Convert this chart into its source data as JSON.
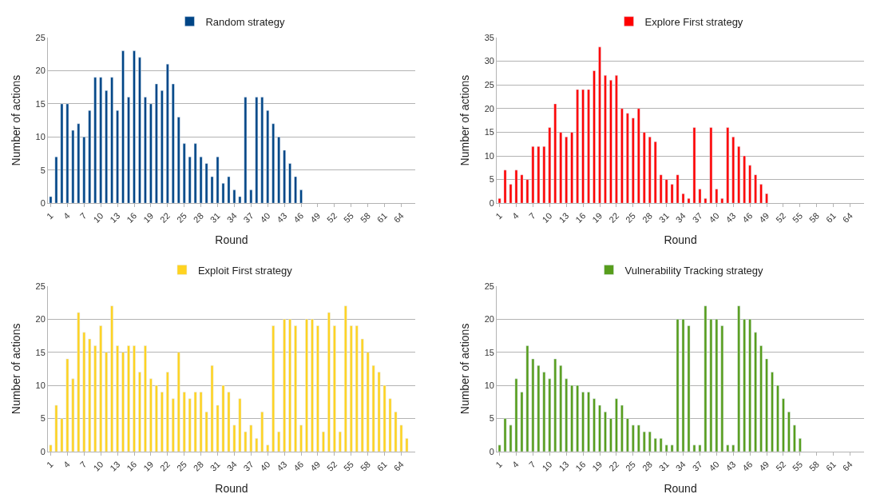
{
  "chart_data": [
    {
      "type": "bar",
      "xlabel": "Round",
      "ylabel": "Number of actions",
      "legend": "top",
      "grid": "y",
      "ylim": [
        0,
        25
      ],
      "yticks": [
        0,
        5,
        10,
        15,
        20,
        25
      ],
      "categories": [
        "1",
        null,
        null,
        "4",
        null,
        null,
        "7",
        null,
        null,
        "10",
        null,
        null,
        "13",
        null,
        null,
        "16",
        null,
        null,
        "19",
        null,
        null,
        "22",
        null,
        null,
        "25",
        null,
        null,
        "28",
        null,
        null,
        "31",
        null,
        null,
        "34",
        null,
        null,
        "37",
        null,
        null,
        "40",
        null,
        null,
        "43",
        null,
        null,
        "46",
        null,
        null,
        "49",
        null,
        null,
        "52",
        null,
        null,
        "55",
        null,
        null,
        "58",
        null,
        null,
        "61",
        null,
        null,
        "64",
        null,
        null
      ],
      "series": [
        {
          "name": "Random strategy",
          "color": "#004586",
          "values": [
            1,
            7,
            15,
            15,
            11,
            12,
            10,
            14,
            19,
            19,
            17,
            19,
            14,
            23,
            16,
            23,
            22,
            16,
            15,
            18,
            17,
            21,
            18,
            13,
            9,
            7,
            9,
            7,
            6,
            4,
            7,
            3,
            4,
            2,
            1,
            16,
            2,
            16,
            16,
            14,
            12,
            10,
            8,
            6,
            4,
            2,
            null,
            null,
            null,
            null,
            null,
            null,
            null,
            null,
            null,
            null,
            null,
            null,
            null,
            null,
            null,
            null,
            null,
            null,
            null,
            null
          ]
        }
      ]
    },
    {
      "type": "bar",
      "xlabel": "Round",
      "ylabel": "Number of actions",
      "legend": "top",
      "grid": "y",
      "ylim": [
        0,
        35
      ],
      "yticks": [
        0,
        5,
        10,
        15,
        20,
        25,
        30,
        35
      ],
      "categories": [
        "1",
        null,
        null,
        "4",
        null,
        null,
        "7",
        null,
        null,
        "10",
        null,
        null,
        "13",
        null,
        null,
        "16",
        null,
        null,
        "19",
        null,
        null,
        "22",
        null,
        null,
        "25",
        null,
        null,
        "28",
        null,
        null,
        "31",
        null,
        null,
        "34",
        null,
        null,
        "37",
        null,
        null,
        "40",
        null,
        null,
        "43",
        null,
        null,
        "46",
        null,
        null,
        "49",
        null,
        null,
        "52",
        null,
        null,
        "55",
        null,
        null,
        "58",
        null,
        null,
        "61",
        null,
        null,
        "64",
        null,
        null
      ],
      "series": [
        {
          "name": "Explore First strategy",
          "color": "#ff0000",
          "values": [
            1,
            7,
            4,
            7,
            6,
            5,
            12,
            12,
            12,
            16,
            21,
            15,
            14,
            15,
            24,
            24,
            24,
            28,
            33,
            27,
            26,
            27,
            20,
            19,
            18,
            20,
            15,
            14,
            13,
            6,
            5,
            4,
            6,
            2,
            1,
            16,
            3,
            1,
            16,
            3,
            1,
            16,
            14,
            12,
            10,
            8,
            6,
            4,
            2,
            null,
            null,
            null,
            null,
            null,
            null,
            null,
            null,
            null,
            null,
            null,
            null,
            null,
            null,
            null,
            null,
            null
          ]
        }
      ]
    },
    {
      "type": "bar",
      "xlabel": "Round",
      "ylabel": "Number of actions",
      "legend": "top",
      "grid": "y",
      "ylim": [
        0,
        25
      ],
      "yticks": [
        0,
        5,
        10,
        15,
        20,
        25
      ],
      "categories": [
        "1",
        null,
        null,
        "4",
        null,
        null,
        "7",
        null,
        null,
        "10",
        null,
        null,
        "13",
        null,
        null,
        "16",
        null,
        null,
        "19",
        null,
        null,
        "22",
        null,
        null,
        "25",
        null,
        null,
        "28",
        null,
        null,
        "31",
        null,
        null,
        "34",
        null,
        null,
        "37",
        null,
        null,
        "40",
        null,
        null,
        "43",
        null,
        null,
        "46",
        null,
        null,
        "49",
        null,
        null,
        "52",
        null,
        null,
        "55",
        null,
        null,
        "58",
        null,
        null,
        "61",
        null,
        null,
        "64",
        null,
        null
      ],
      "series": [
        {
          "name": "Exploit First strategy",
          "color": "#ffd320",
          "values": [
            1,
            7,
            5,
            14,
            11,
            21,
            18,
            17,
            16,
            19,
            15,
            22,
            16,
            15,
            16,
            16,
            12,
            16,
            11,
            10,
            9,
            12,
            8,
            15,
            9,
            8,
            9,
            9,
            6,
            13,
            7,
            10,
            9,
            4,
            8,
            3,
            4,
            2,
            6,
            1,
            19,
            3,
            20,
            20,
            19,
            4,
            20,
            20,
            19,
            3,
            21,
            19,
            3,
            22,
            19,
            19,
            17,
            15,
            13,
            12,
            10,
            8,
            6,
            4,
            2,
            null
          ]
        }
      ]
    },
    {
      "type": "bar",
      "xlabel": "Round",
      "ylabel": "Number of actions",
      "legend": "top",
      "grid": "y",
      "ylim": [
        0,
        25
      ],
      "yticks": [
        0,
        5,
        10,
        15,
        20,
        25
      ],
      "categories": [
        "1",
        null,
        null,
        "4",
        null,
        null,
        "7",
        null,
        null,
        "10",
        null,
        null,
        "13",
        null,
        null,
        "16",
        null,
        null,
        "19",
        null,
        null,
        "22",
        null,
        null,
        "25",
        null,
        null,
        "28",
        null,
        null,
        "31",
        null,
        null,
        "34",
        null,
        null,
        "37",
        null,
        null,
        "40",
        null,
        null,
        "43",
        null,
        null,
        "46",
        null,
        null,
        "49",
        null,
        null,
        "52",
        null,
        null,
        "55",
        null,
        null,
        "58",
        null,
        null,
        "61",
        null,
        null,
        "64",
        null,
        null
      ],
      "series": [
        {
          "name": "Vulnerability Tracking strategy",
          "color": "#579d1c",
          "values": [
            1,
            5,
            4,
            11,
            9,
            16,
            14,
            13,
            12,
            11,
            14,
            13,
            11,
            10,
            10,
            9,
            9,
            8,
            7,
            6,
            5,
            8,
            7,
            5,
            4,
            4,
            3,
            3,
            2,
            2,
            1,
            1,
            20,
            20,
            19,
            1,
            1,
            22,
            20,
            20,
            19,
            1,
            1,
            22,
            20,
            20,
            18,
            16,
            14,
            12,
            10,
            8,
            6,
            4,
            2,
            null,
            null,
            null,
            null,
            null,
            null,
            null,
            null,
            null,
            null,
            null
          ]
        }
      ]
    }
  ]
}
